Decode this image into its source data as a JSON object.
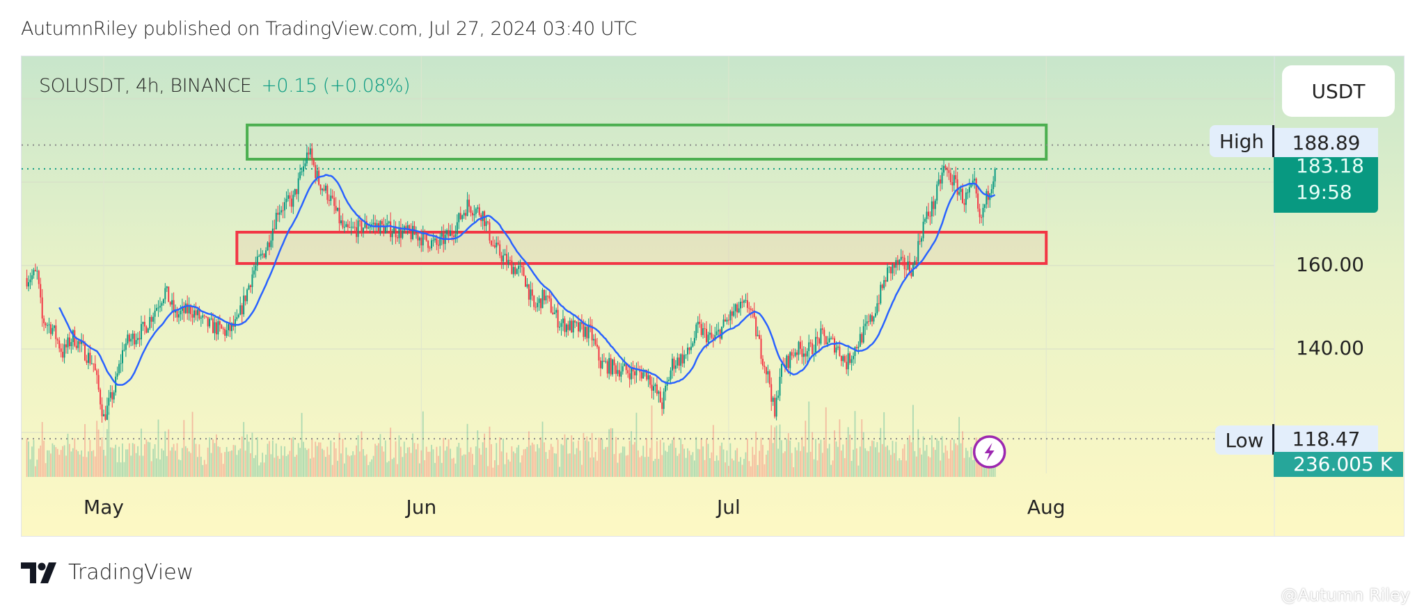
{
  "header": {
    "published": "AutumnRiley published on TradingView.com, Jul 27, 2024 03:40 UTC"
  },
  "legend": {
    "symbol": "SOLUSDT, 4h, BINANCE",
    "change": "+0.15 (+0.08%)"
  },
  "currency_button": "USDT",
  "footer": {
    "brand": "TradingView",
    "watermark": "@Autumn Riley"
  },
  "colors": {
    "up": "#089981",
    "down": "#f23645",
    "ma": "#2962ff",
    "green_zone": "#4caf50",
    "red_zone": "#f23645",
    "last_price": "#089981",
    "volume_tag": "#26a69a",
    "bolt": "#9c27b0"
  },
  "icons": {
    "brand": "tradingview-logo",
    "indicator": "lightning-bolt-icon"
  },
  "chart_data": {
    "type": "candlestick",
    "interval": "4h",
    "ylim": [
      110,
      200
    ],
    "y_ticks": [
      "160.00",
      "140.00"
    ],
    "y_tick_values": [
      160,
      140
    ],
    "x_ticks": [
      "May",
      "Jun",
      "Jul",
      "Aug"
    ],
    "x_tick_dates": [
      "2024-05-01",
      "2024-06-01",
      "2024-07-01",
      "2024-08-01"
    ],
    "high": {
      "label": "High",
      "value": "188.89"
    },
    "low": {
      "label": "Low",
      "value": "118.47"
    },
    "last": {
      "price": "183.18",
      "countdown": "19:58"
    },
    "volume_last": "236.005 K",
    "ma_period": 20,
    "zones": [
      {
        "color": "green",
        "top": 193.7,
        "bottom": 185.5,
        "from": "2024-05-15",
        "to": "2024-08-01"
      },
      {
        "color": "red",
        "top": 168.0,
        "bottom": 160.5,
        "from": "2024-05-14",
        "to": "2024-08-01"
      }
    ],
    "close_path": [
      [
        "2024-04-23T12",
        157
      ],
      [
        "2024-04-24T12",
        158
      ],
      [
        "2024-04-25",
        147
      ],
      [
        "2024-04-26",
        145
      ],
      [
        "2024-04-27",
        139
      ],
      [
        "2024-04-28",
        143
      ],
      [
        "2024-04-30",
        136.5
      ],
      [
        "2024-05-01",
        123.5
      ],
      [
        "2024-05-02",
        130
      ],
      [
        "2024-05-03",
        141
      ],
      [
        "2024-05-05",
        145
      ],
      [
        "2024-05-07",
        154
      ],
      [
        "2024-05-08",
        148
      ],
      [
        "2024-05-09T12",
        149.5
      ],
      [
        "2024-05-11",
        146
      ],
      [
        "2024-05-13",
        144
      ],
      [
        "2024-05-14",
        146
      ],
      [
        "2024-05-15T12",
        158
      ],
      [
        "2024-05-17",
        165
      ],
      [
        "2024-05-18",
        173.5
      ],
      [
        "2024-05-19T12",
        175.7
      ],
      [
        "2024-05-21",
        187.6
      ],
      [
        "2024-05-22",
        180
      ],
      [
        "2024-05-23",
        176.7
      ],
      [
        "2024-05-24T12",
        168
      ],
      [
        "2024-05-26",
        169
      ],
      [
        "2024-05-27",
        170
      ],
      [
        "2024-05-28T12",
        169
      ],
      [
        "2024-05-30",
        168
      ],
      [
        "2024-05-31T12",
        167.4
      ],
      [
        "2024-06-02T12",
        164.8
      ],
      [
        "2024-06-04",
        168
      ],
      [
        "2024-06-05T12",
        174.6
      ],
      [
        "2024-06-07",
        172.4
      ],
      [
        "2024-06-08",
        164.8
      ],
      [
        "2024-06-09T12",
        160.4
      ],
      [
        "2024-06-11",
        158
      ],
      [
        "2024-06-12",
        149.6
      ],
      [
        "2024-06-13",
        152.8
      ],
      [
        "2024-06-14T12",
        146.3
      ],
      [
        "2024-06-16",
        145
      ],
      [
        "2024-06-17T12",
        144
      ],
      [
        "2024-06-18T12",
        136.5
      ],
      [
        "2024-06-20",
        135.4
      ],
      [
        "2024-06-22",
        134.3
      ],
      [
        "2024-06-23",
        134.3
      ],
      [
        "2024-06-24T12",
        126.7
      ],
      [
        "2024-06-25T12",
        136.5
      ],
      [
        "2024-06-27",
        138.7
      ],
      [
        "2024-06-28",
        145
      ],
      [
        "2024-06-29T12",
        142
      ],
      [
        "2024-07-01",
        147.4
      ],
      [
        "2024-07-02",
        149.6
      ],
      [
        "2024-07-03",
        150.6
      ],
      [
        "2024-07-04",
        141
      ],
      [
        "2024-07-05",
        132
      ],
      [
        "2024-07-05T12",
        123.5
      ],
      [
        "2024-07-06",
        134.3
      ],
      [
        "2024-07-07T12",
        139.8
      ],
      [
        "2024-07-09",
        139.8
      ],
      [
        "2024-07-10",
        143
      ],
      [
        "2024-07-11T12",
        140.8
      ],
      [
        "2024-07-12T12",
        136.5
      ],
      [
        "2024-07-13T12",
        141
      ],
      [
        "2024-07-15",
        147.4
      ],
      [
        "2024-07-16T12",
        158.3
      ],
      [
        "2024-07-17T12",
        160.4
      ],
      [
        "2024-07-19",
        159.3
      ],
      [
        "2024-07-20",
        170
      ],
      [
        "2024-07-21",
        174.6
      ],
      [
        "2024-07-22",
        183.3
      ],
      [
        "2024-07-23",
        180
      ],
      [
        "2024-07-24",
        175.7
      ],
      [
        "2024-07-25",
        179
      ],
      [
        "2024-07-25T12",
        170
      ],
      [
        "2024-07-26",
        174.6
      ],
      [
        "2024-07-27",
        183.18
      ]
    ]
  }
}
